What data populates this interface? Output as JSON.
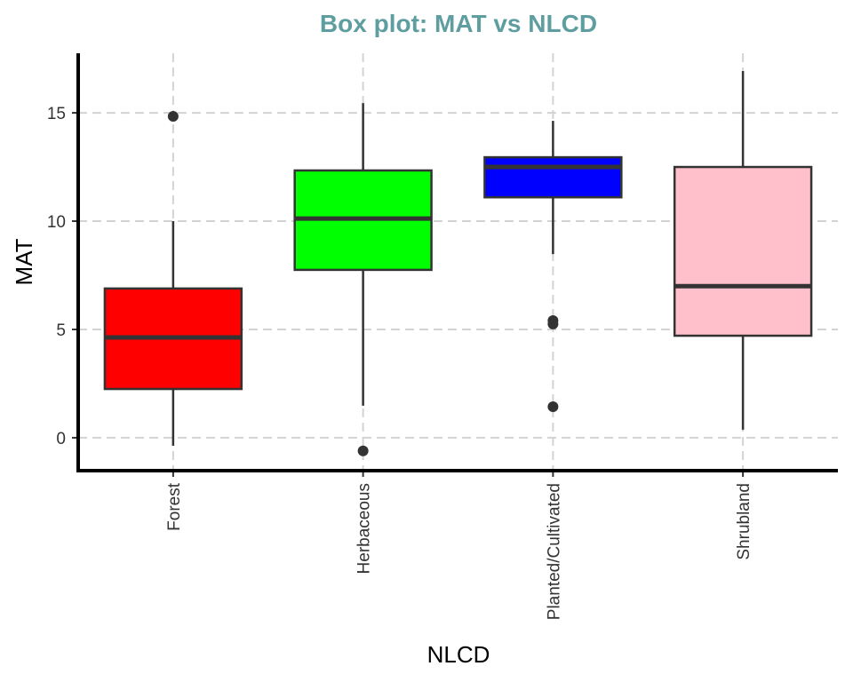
{
  "chart_data": {
    "type": "box",
    "title": "Box plot: MAT vs NLCD",
    "xlabel": "NLCD",
    "ylabel": "MAT",
    "ylim": [
      -1.52,
      17.75
    ],
    "yticks": [
      0,
      5,
      10,
      15
    ],
    "ytick_labels": [
      "0",
      "5",
      "10",
      "15"
    ],
    "grid": true,
    "categories": [
      "Forest",
      "Herbaceous",
      "Planted/Cultivated",
      "Shrubland"
    ],
    "colors": [
      "#ff0000",
      "#00ff00",
      "#0000ff",
      "#ffc0cb"
    ],
    "boxes": [
      {
        "whisker_low": -0.37,
        "q1": 2.25,
        "median": 4.63,
        "q3": 6.89,
        "whisker_high": 10.0,
        "outliers": [
          14.84
        ]
      },
      {
        "whisker_low": 1.48,
        "q1": 7.75,
        "median": 10.12,
        "q3": 12.34,
        "whisker_high": 15.45,
        "outliers": [
          -0.61
        ]
      },
      {
        "whisker_low": 8.48,
        "q1": 11.1,
        "median": 12.5,
        "q3": 12.95,
        "whisker_high": 14.63,
        "outliers": [
          5.41,
          5.25,
          1.43
        ]
      },
      {
        "whisker_low": 0.37,
        "q1": 4.71,
        "median": 7.0,
        "q3": 12.5,
        "whisker_high": 16.93,
        "outliers": []
      }
    ]
  }
}
